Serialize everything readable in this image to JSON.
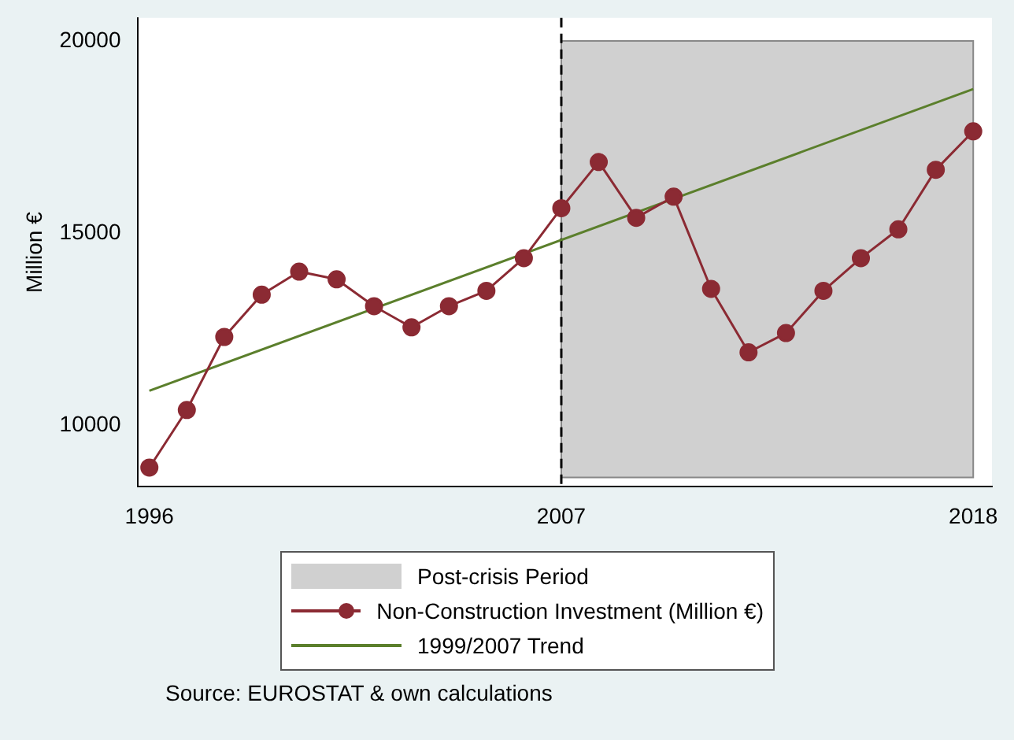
{
  "chart_data": {
    "type": "line",
    "ylabel": "Million €",
    "x": [
      1996,
      1997,
      1998,
      1999,
      2000,
      2001,
      2002,
      2003,
      2004,
      2005,
      2006,
      2007,
      2008,
      2009,
      2010,
      2011,
      2012,
      2013,
      2014,
      2015,
      2016,
      2017,
      2018
    ],
    "series": [
      {
        "name": "Non-Construction Investment (Million €)",
        "color": "#8b2a33",
        "marker": "circle",
        "values": [
          8900,
          10400,
          12300,
          13400,
          14000,
          13800,
          13100,
          12550,
          13100,
          13500,
          14350,
          15650,
          16850,
          15400,
          15950,
          13550,
          11900,
          12400,
          13500,
          14350,
          15100,
          16650,
          17650
        ]
      },
      {
        "name": "1999/2007 Trend",
        "type": "line",
        "color": "#5b7f2c",
        "marker": "none",
        "x": [
          1996,
          2018
        ],
        "values": [
          10900,
          18750
        ]
      }
    ],
    "bands": [
      {
        "axis": "x",
        "from": 2007,
        "to": 2018,
        "label": "Post-crisis Period",
        "color": "#d0d0d0"
      }
    ],
    "ref_lines": [
      {
        "axis": "x",
        "value": 2007,
        "color": "#000000",
        "line_style": "dashed"
      }
    ],
    "xlim": [
      1995.7,
      2018.5
    ],
    "xticks": [
      1996,
      2007,
      2018
    ],
    "ylim": [
      8400,
      20600
    ],
    "yticks": [
      10000,
      15000,
      20000
    ],
    "grid": false,
    "legend": "bottom",
    "annotations": [
      "Source: EUROSTAT & own calculations"
    ]
  }
}
